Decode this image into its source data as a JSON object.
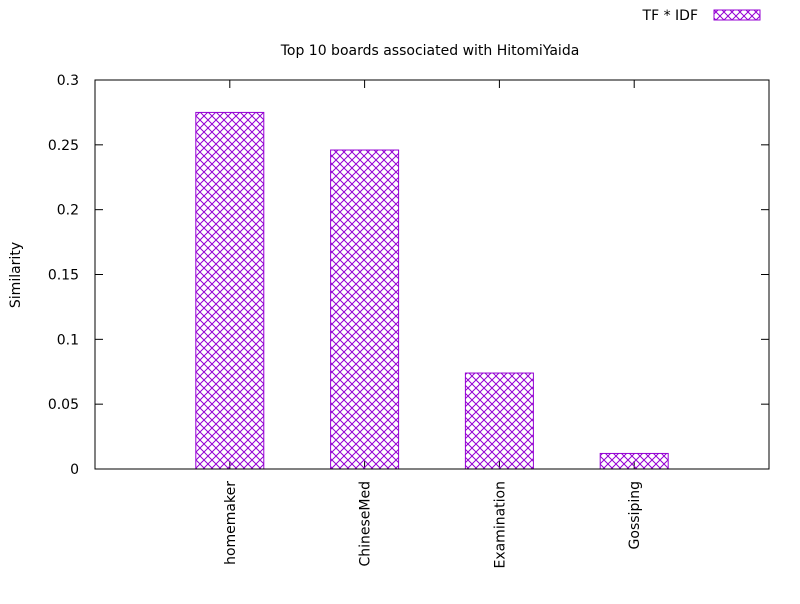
{
  "chart_data": {
    "type": "bar",
    "title": "Top 10 boards associated with HitomiYaida",
    "xlabel": "",
    "ylabel": "Similarity",
    "categories": [
      "homemaker",
      "ChineseMed",
      "Examination",
      "Gossiping"
    ],
    "series": [
      {
        "name": "TF * IDF",
        "values": [
          0.275,
          0.246,
          0.074,
          0.012
        ]
      }
    ],
    "ylim": [
      0,
      0.3
    ],
    "yticks": [
      0,
      0.05,
      0.1,
      0.15,
      0.2,
      0.25,
      0.3
    ],
    "ytick_labels": [
      "0",
      "0.05",
      "0.1",
      "0.15",
      "0.2",
      "0.25",
      "0.3"
    ],
    "xlim": [
      -1,
      4
    ],
    "grid": false,
    "legend_position": "top-right",
    "bar_color": "#9400d3",
    "bar_pattern": "crosshatch"
  }
}
